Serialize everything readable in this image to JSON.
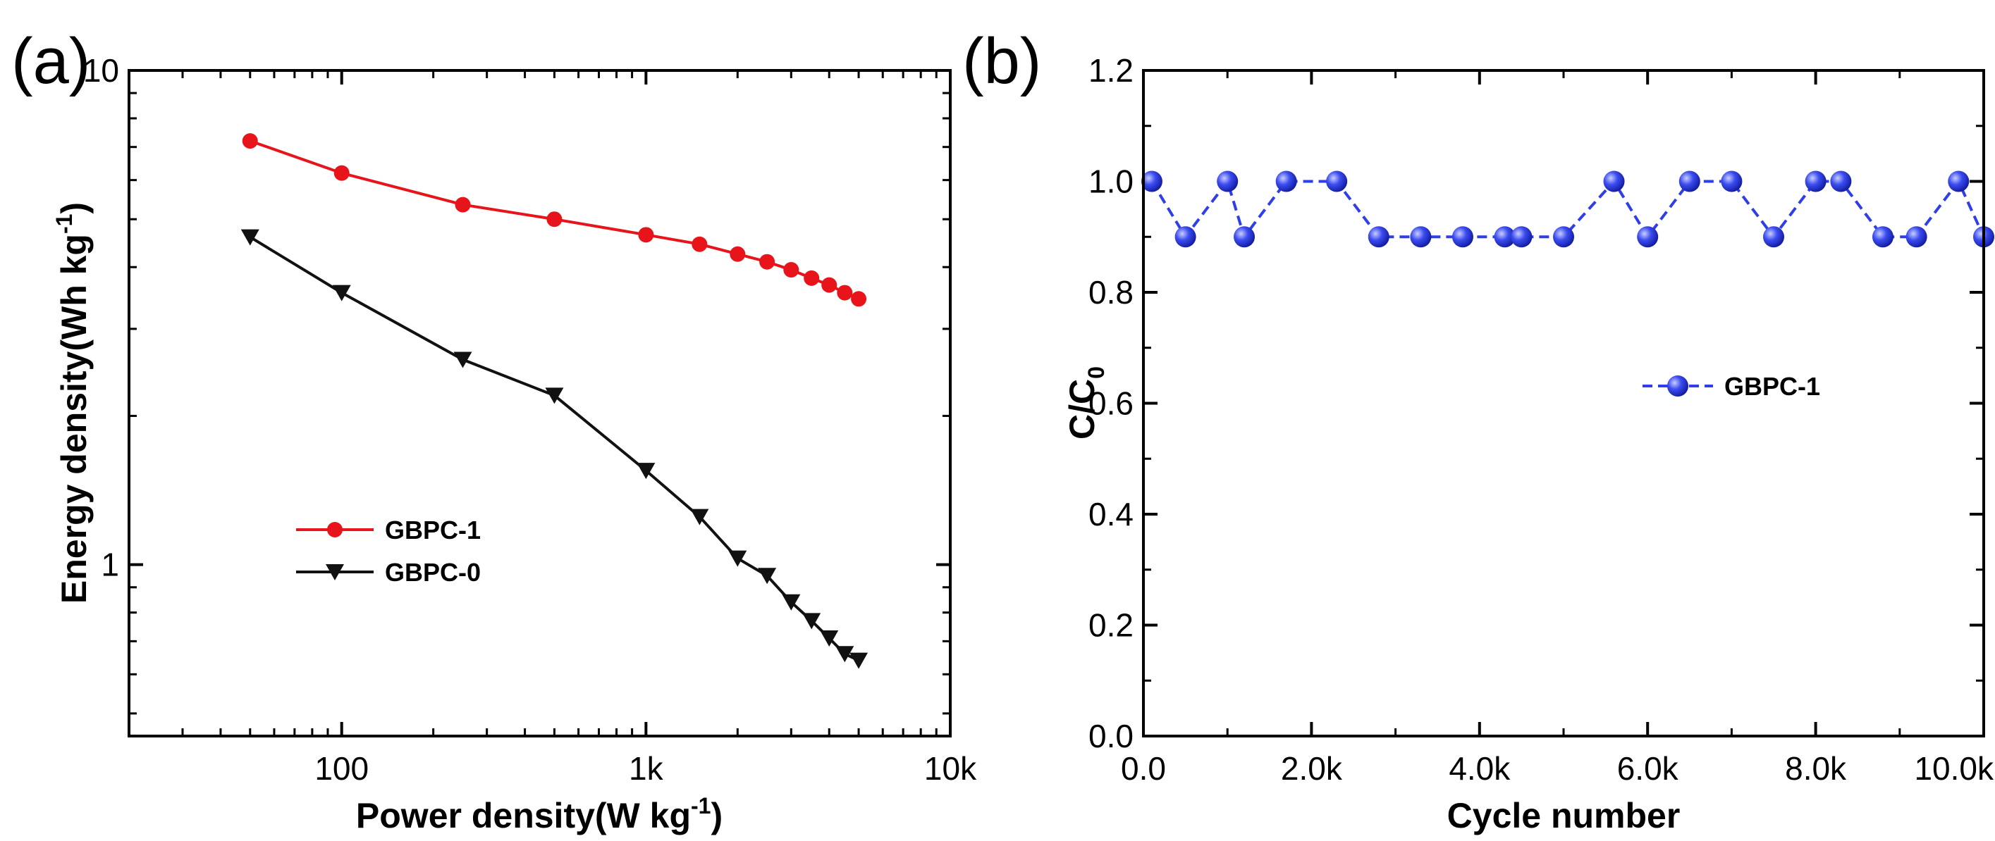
{
  "chart_data": [
    {
      "panel_label": "(a)",
      "type": "line",
      "xscale": "log",
      "yscale": "log",
      "xlabel": "Power density(W kg",
      "xlabel_sup": "-1",
      "xlabel_end": ")",
      "ylabel": "Energy density(Wh kg",
      "ylabel_sup": "-1",
      "ylabel_end": ")",
      "xlim": [
        20,
        10000
      ],
      "ylim": [
        0.45,
        10
      ],
      "xticks": [
        {
          "value": 100,
          "label": "100"
        },
        {
          "value": 1000,
          "label": "1k"
        },
        {
          "value": 10000,
          "label": "10k"
        }
      ],
      "yticks": [
        {
          "value": 1,
          "label": "1"
        },
        {
          "value": 10,
          "label": "10"
        }
      ],
      "legend_position": "lower-left",
      "series": [
        {
          "name": "GBPC-1",
          "color": "#e8141c",
          "marker": "circle",
          "x": [
            50,
            100,
            250,
            500,
            1000,
            1500,
            2000,
            2500,
            3000,
            3500,
            4000,
            4500,
            5000
          ],
          "y": [
            7.2,
            6.2,
            5.35,
            5.0,
            4.65,
            4.45,
            4.25,
            4.1,
            3.95,
            3.8,
            3.68,
            3.55,
            3.45
          ]
        },
        {
          "name": "GBPC-0",
          "color": "#111111",
          "marker": "triangle-down",
          "x": [
            50,
            100,
            250,
            500,
            1000,
            1500,
            2000,
            2500,
            3000,
            3500,
            4000,
            4500,
            5000
          ],
          "y": [
            4.6,
            3.55,
            2.6,
            2.2,
            1.55,
            1.25,
            1.03,
            0.95,
            0.84,
            0.77,
            0.71,
            0.66,
            0.64
          ]
        }
      ]
    },
    {
      "panel_label": "(b)",
      "type": "line",
      "xlabel": "Cycle number",
      "ylabel": "C/C",
      "ylabel_sub": "0",
      "xlim": [
        0,
        10000
      ],
      "ylim": [
        0,
        1.2
      ],
      "xticks": [
        {
          "value": 0,
          "label": "0.0"
        },
        {
          "value": 2000,
          "label": "2.0k"
        },
        {
          "value": 4000,
          "label": "4.0k"
        },
        {
          "value": 6000,
          "label": "6.0k"
        },
        {
          "value": 8000,
          "label": "8.0k"
        },
        {
          "value": 10000,
          "label": "10.0k"
        }
      ],
      "yticks": [
        {
          "value": 0,
          "label": "0.0"
        },
        {
          "value": 0.2,
          "label": "0.2"
        },
        {
          "value": 0.4,
          "label": "0.4"
        },
        {
          "value": 0.6,
          "label": "0.6"
        },
        {
          "value": 0.8,
          "label": "0.8"
        },
        {
          "value": 1.0,
          "label": "1.0"
        },
        {
          "value": 1.2,
          "label": "1.2"
        }
      ],
      "legend_position": "center-right",
      "series": [
        {
          "name": "GBPC-1",
          "color": "#2f3fe8",
          "marker": "sphere",
          "x": [
            100,
            500,
            1000,
            1200,
            1700,
            2300,
            2800,
            3300,
            3800,
            4300,
            4500,
            5000,
            5600,
            6000,
            6500,
            7000,
            7500,
            8000,
            8300,
            8800,
            9200,
            9700,
            10000
          ],
          "y": [
            1.0,
            0.9,
            1.0,
            0.9,
            1.0,
            1.0,
            0.9,
            0.9,
            0.9,
            0.9,
            0.9,
            0.9,
            1.0,
            0.9,
            1.0,
            1.0,
            0.9,
            1.0,
            1.0,
            0.9,
            0.9,
            1.0,
            0.9
          ]
        }
      ]
    }
  ]
}
